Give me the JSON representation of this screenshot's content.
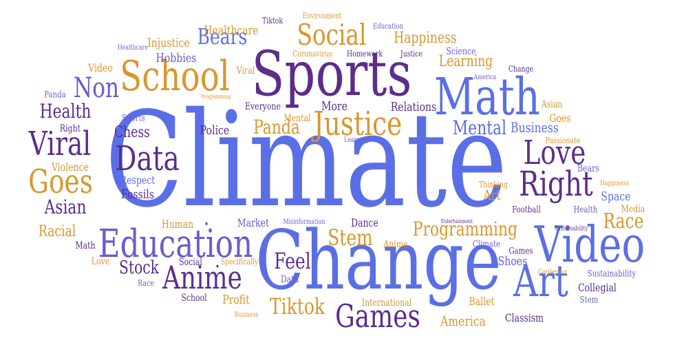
{
  "palette": {
    "blue": "#5a6fe6",
    "orange": "#d9962e",
    "purple": "#5b2d8c",
    "indigo": "#6a5cd0"
  },
  "words": [
    "Climate",
    "Change",
    "Sports",
    "Math",
    "School",
    "Video",
    "Education",
    "Anime",
    "Art",
    "Justice",
    "Social",
    "Right",
    "Love",
    "Games",
    "Viral",
    "Goes",
    "Data",
    "Non",
    "Health",
    "Tiktok",
    "Bears",
    "Stem",
    "Programming",
    "Panda",
    "Race",
    "Mental",
    "Feel",
    "Asian",
    "Chess",
    "Stock",
    "Business",
    "Learning",
    "Happiness",
    "Healthcare",
    "Injustice",
    "Hobbies",
    "Relations",
    "More",
    "Police",
    "Mental",
    "Fossils",
    "Respect",
    "Violence",
    "Racial",
    "Human",
    "Market",
    "Dance",
    "Anime",
    "Shoes",
    "Collegial",
    "Ballet",
    "America",
    "Classism",
    "Profit",
    "International",
    "Specifically",
    "Social",
    "School",
    "Race",
    "Love",
    "Math",
    "Everyone",
    "Sports",
    "Coronavirus",
    "Homework",
    "Justice",
    "Science",
    "America",
    "Change",
    "Education",
    "Environment",
    "Tiktok",
    "Healthcare",
    "Video",
    "Panda",
    "Viral",
    "Right",
    "Programming",
    "Learning",
    "Passionate",
    "Goes",
    "Asian",
    "Bears",
    "Thinking",
    "Happiness",
    "Space",
    "Football",
    "Health",
    "Media",
    "Sustainability",
    "Art",
    "Misinformation",
    "Entertainment",
    "Climate",
    "Games",
    "Gardening",
    "Sustainability",
    "Data",
    "Business",
    "Stem"
  ]
}
